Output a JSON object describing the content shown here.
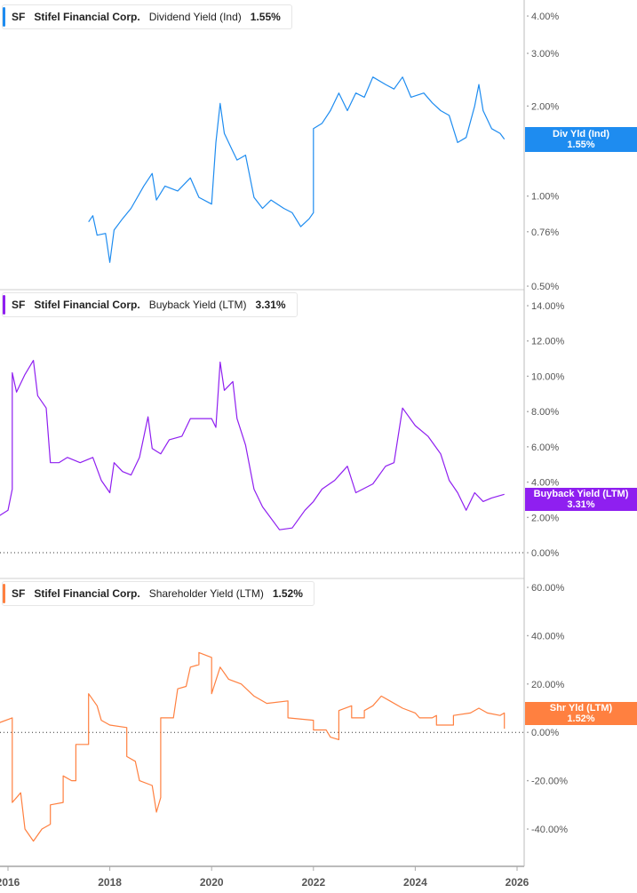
{
  "chart_data": [
    {
      "type": "line",
      "ticker": "SF",
      "company": "Stifel Financial Corp.",
      "metric": "Dividend Yield (Ind)",
      "last_value": "1.55%",
      "badge_label": "Div Yld (Ind)",
      "color": "#1e8cf0",
      "scale": "log",
      "ylim": [
        0.48,
        4.4
      ],
      "yticks": [
        0.5,
        0.76,
        1.0,
        2.0,
        3.0,
        4.0
      ],
      "ytick_labels": [
        "0.50%",
        "0.76%",
        "1.00%",
        "2.00%",
        "3.00%",
        "4.00%"
      ],
      "points": [
        [
          "2017-08",
          0.82
        ],
        [
          "2017-09",
          0.86
        ],
        [
          "2017-10",
          0.74
        ],
        [
          "2017-12",
          0.75
        ],
        [
          "2018-01",
          0.6
        ],
        [
          "2018-02",
          0.77
        ],
        [
          "2018-04",
          0.84
        ],
        [
          "2018-06",
          0.91
        ],
        [
          "2018-09",
          1.08
        ],
        [
          "2018-11",
          1.19
        ],
        [
          "2018-12",
          0.97
        ],
        [
          "2019-02",
          1.08
        ],
        [
          "2019-05",
          1.04
        ],
        [
          "2019-08",
          1.15
        ],
        [
          "2019-10",
          0.99
        ],
        [
          "2020-01",
          0.94
        ],
        [
          "2020-02",
          1.51
        ],
        [
          "2020-03",
          2.04
        ],
        [
          "2020-04",
          1.62
        ],
        [
          "2020-06",
          1.41
        ],
        [
          "2020-07",
          1.32
        ],
        [
          "2020-09",
          1.37
        ],
        [
          "2020-11",
          0.99
        ],
        [
          "2021-01",
          0.91
        ],
        [
          "2021-03",
          0.97
        ],
        [
          "2021-06",
          0.91
        ],
        [
          "2021-08",
          0.88
        ],
        [
          "2021-10",
          0.79
        ],
        [
          "2021-12",
          0.84
        ],
        [
          "2022-01",
          0.88
        ],
        [
          "2022-01",
          1.68
        ],
        [
          "2022-03",
          1.75
        ],
        [
          "2022-05",
          1.93
        ],
        [
          "2022-07",
          2.21
        ],
        [
          "2022-09",
          1.93
        ],
        [
          "2022-11",
          2.21
        ],
        [
          "2023-01",
          2.14
        ],
        [
          "2023-03",
          2.5
        ],
        [
          "2023-06",
          2.36
        ],
        [
          "2023-08",
          2.28
        ],
        [
          "2023-10",
          2.5
        ],
        [
          "2023-12",
          2.14
        ],
        [
          "2024-03",
          2.21
        ],
        [
          "2024-05",
          2.05
        ],
        [
          "2024-07",
          1.93
        ],
        [
          "2024-09",
          1.86
        ],
        [
          "2024-11",
          1.51
        ],
        [
          "2025-01",
          1.57
        ],
        [
          "2025-03",
          2.0
        ],
        [
          "2025-04",
          2.36
        ],
        [
          "2025-05",
          1.93
        ],
        [
          "2025-07",
          1.68
        ],
        [
          "2025-09",
          1.62
        ],
        [
          "2025-10",
          1.55
        ]
      ]
    },
    {
      "type": "line",
      "ticker": "SF",
      "company": "Stifel Financial Corp.",
      "metric": "Buyback Yield (LTM)",
      "last_value": "3.31%",
      "badge_label": "Buyback Yield (LTM)",
      "color": "#8f1ff0",
      "scale": "linear",
      "ylim": [
        -0.2,
        15.2
      ],
      "yticks": [
        0,
        2,
        4,
        6,
        8,
        10,
        12,
        14
      ],
      "ytick_labels": [
        "0.00%",
        "2.00%",
        "4.00%",
        "6.00%",
        "8.00%",
        "10.00%",
        "12.00%",
        "14.00%"
      ],
      "points": [
        [
          "2015-11",
          0
        ],
        [
          "2015-11",
          2.1
        ],
        [
          "2016-01",
          2.4
        ],
        [
          "2016-02",
          3.6
        ],
        [
          "2016-02",
          10.2
        ],
        [
          "2016-03",
          9.1
        ],
        [
          "2016-05",
          10.1
        ],
        [
          "2016-07",
          10.9
        ],
        [
          "2016-08",
          8.9
        ],
        [
          "2016-10",
          8.2
        ],
        [
          "2016-11",
          5.1
        ],
        [
          "2017-01",
          5.1
        ],
        [
          "2017-03",
          5.4
        ],
        [
          "2017-06",
          5.1
        ],
        [
          "2017-09",
          5.4
        ],
        [
          "2017-11",
          4.1
        ],
        [
          "2018-01",
          3.4
        ],
        [
          "2018-02",
          5.1
        ],
        [
          "2018-04",
          4.6
        ],
        [
          "2018-06",
          4.4
        ],
        [
          "2018-08",
          5.4
        ],
        [
          "2018-10",
          7.7
        ],
        [
          "2018-11",
          5.9
        ],
        [
          "2019-01",
          5.6
        ],
        [
          "2019-03",
          6.4
        ],
        [
          "2019-06",
          6.6
        ],
        [
          "2019-08",
          7.6
        ],
        [
          "2019-10",
          7.6
        ],
        [
          "2020-01",
          7.6
        ],
        [
          "2020-02",
          7.1
        ],
        [
          "2020-03",
          10.8
        ],
        [
          "2020-04",
          9.2
        ],
        [
          "2020-06",
          9.7
        ],
        [
          "2020-07",
          7.6
        ],
        [
          "2020-09",
          6.1
        ],
        [
          "2020-11",
          3.6
        ],
        [
          "2021-01",
          2.6
        ],
        [
          "2021-05",
          1.3
        ],
        [
          "2021-08",
          1.4
        ],
        [
          "2021-11",
          2.4
        ],
        [
          "2022-01",
          2.9
        ],
        [
          "2022-03",
          3.6
        ],
        [
          "2022-06",
          4.1
        ],
        [
          "2022-09",
          4.9
        ],
        [
          "2022-11",
          3.4
        ],
        [
          "2023-03",
          3.9
        ],
        [
          "2023-06",
          4.9
        ],
        [
          "2023-08",
          5.1
        ],
        [
          "2023-10",
          8.2
        ],
        [
          "2024-01",
          7.2
        ],
        [
          "2024-04",
          6.6
        ],
        [
          "2024-07",
          5.6
        ],
        [
          "2024-09",
          4.1
        ],
        [
          "2024-11",
          3.4
        ],
        [
          "2025-01",
          2.4
        ],
        [
          "2025-03",
          3.4
        ],
        [
          "2025-05",
          2.9
        ],
        [
          "2025-07",
          3.1
        ],
        [
          "2025-10",
          3.31
        ]
      ]
    },
    {
      "type": "line",
      "ticker": "SF",
      "company": "Stifel Financial Corp.",
      "metric": "Shareholder Yield (LTM)",
      "last_value": "1.52%",
      "badge_label": "Shr Yld (LTM)",
      "color": "#ff8040",
      "scale": "linear",
      "ylim": [
        -55,
        64
      ],
      "yticks": [
        -40,
        -20,
        0,
        20,
        40,
        60
      ],
      "ytick_labels": [
        "-40.00%",
        "-20.00%",
        "0.00%",
        "20.00%",
        "40.00%",
        "60.00%"
      ],
      "points": [
        [
          "2015-11",
          4
        ],
        [
          "2016-02",
          6
        ],
        [
          "2016-02",
          -29
        ],
        [
          "2016-04",
          -25
        ],
        [
          "2016-05",
          -40
        ],
        [
          "2016-07",
          -45
        ],
        [
          "2016-09",
          -40
        ],
        [
          "2016-11",
          -38
        ],
        [
          "2016-11",
          -30
        ],
        [
          "2017-02",
          -29
        ],
        [
          "2017-02",
          -18
        ],
        [
          "2017-04",
          -20
        ],
        [
          "2017-05",
          -20
        ],
        [
          "2017-05",
          -5
        ],
        [
          "2017-08",
          -5
        ],
        [
          "2017-08",
          16
        ],
        [
          "2017-10",
          11
        ],
        [
          "2017-11",
          5
        ],
        [
          "2018-01",
          3
        ],
        [
          "2018-05",
          2
        ],
        [
          "2018-05",
          -10
        ],
        [
          "2018-07",
          -12
        ],
        [
          "2018-08",
          -20
        ],
        [
          "2018-11",
          -22
        ],
        [
          "2018-12",
          -33
        ],
        [
          "2019-01",
          -27
        ],
        [
          "2019-01",
          6
        ],
        [
          "2019-04",
          6
        ],
        [
          "2019-05",
          18
        ],
        [
          "2019-07",
          19
        ],
        [
          "2019-08",
          27
        ],
        [
          "2019-10",
          28
        ],
        [
          "2019-10",
          33
        ],
        [
          "2020-01",
          31
        ],
        [
          "2020-01",
          16
        ],
        [
          "2020-03",
          27
        ],
        [
          "2020-05",
          22
        ],
        [
          "2020-08",
          20
        ],
        [
          "2020-11",
          15
        ],
        [
          "2021-02",
          12
        ],
        [
          "2021-07",
          13
        ],
        [
          "2021-07",
          6
        ],
        [
          "2022-01",
          5
        ],
        [
          "2022-01",
          1
        ],
        [
          "2022-04",
          1
        ],
        [
          "2022-05",
          -2
        ],
        [
          "2022-07",
          -3
        ],
        [
          "2022-07",
          9
        ],
        [
          "2022-10",
          11
        ],
        [
          "2022-10",
          6
        ],
        [
          "2023-01",
          6
        ],
        [
          "2023-01",
          9
        ],
        [
          "2023-03",
          11
        ],
        [
          "2023-05",
          15
        ],
        [
          "2023-07",
          13
        ],
        [
          "2023-10",
          10
        ],
        [
          "2024-01",
          8
        ],
        [
          "2024-02",
          6
        ],
        [
          "2024-05",
          6
        ],
        [
          "2024-06",
          7
        ],
        [
          "2024-06",
          3
        ],
        [
          "2024-10",
          3
        ],
        [
          "2024-10",
          7
        ],
        [
          "2025-02",
          8
        ],
        [
          "2025-04",
          10
        ],
        [
          "2025-06",
          8
        ],
        [
          "2025-09",
          7
        ],
        [
          "2025-10",
          8
        ],
        [
          "2025-10",
          1.52
        ]
      ]
    }
  ],
  "x_axis": {
    "ticks": [
      "2016",
      "2018",
      "2020",
      "2022",
      "2024",
      "2026"
    ],
    "xlim": [
      "2015-10-20",
      "2026-03-01"
    ]
  }
}
